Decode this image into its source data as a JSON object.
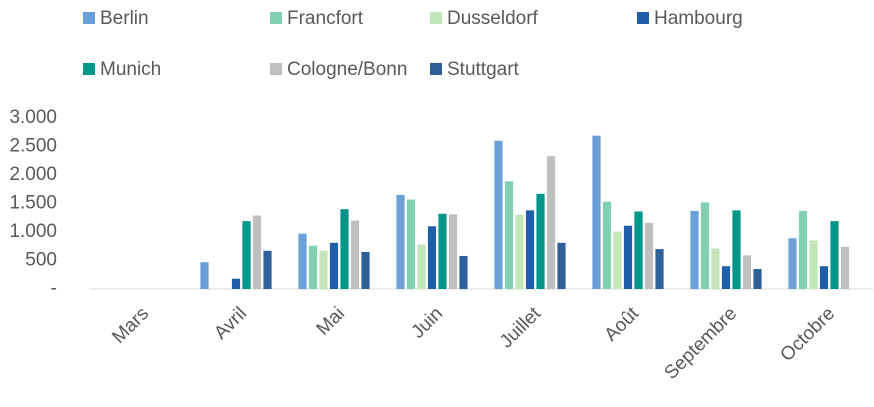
{
  "chart_data": {
    "type": "bar",
    "categories": [
      "Mars",
      "Avril",
      "Mai",
      "Juin",
      "Juillet",
      "Août",
      "Septembre",
      "Octobre"
    ],
    "series": [
      {
        "name": "Berlin",
        "color": "#6a9fd8",
        "values": [
          0,
          470,
          970,
          1650,
          2600,
          2690,
          1370,
          890
        ]
      },
      {
        "name": "Francfort",
        "color": "#82d0b2",
        "values": [
          0,
          0,
          760,
          1570,
          1890,
          1530,
          1520,
          1370
        ]
      },
      {
        "name": "Dusseldorf",
        "color": "#c3e6b9",
        "values": [
          0,
          0,
          670,
          780,
          1300,
          1010,
          710,
          850
        ]
      },
      {
        "name": "Hambourg",
        "color": "#1f5ea8",
        "values": [
          0,
          180,
          810,
          1100,
          1380,
          1110,
          400,
          400
        ]
      },
      {
        "name": "Munich",
        "color": "#00968a",
        "values": [
          0,
          1190,
          1400,
          1320,
          1670,
          1360,
          1380,
          1190
        ]
      },
      {
        "name": "Cologne/Bonn",
        "color": "#bfbfbf",
        "values": [
          0,
          1290,
          1200,
          1310,
          2330,
          1160,
          590,
          740
        ]
      },
      {
        "name": "Stuttgart",
        "color": "#2e6198",
        "values": [
          0,
          670,
          650,
          580,
          810,
          700,
          350,
          0
        ]
      }
    ],
    "ylim": [
      0,
      3000
    ],
    "yticks": [
      {
        "value": 0,
        "label": "-"
      },
      500,
      {
        "value": 1000,
        "label": "1.000"
      },
      {
        "value": 1500,
        "label": "1.500"
      },
      {
        "value": 2000,
        "label": "2.000"
      },
      {
        "value": 2500,
        "label": "2.500"
      },
      {
        "value": 3000,
        "label": "3.000"
      }
    ],
    "grid": false
  }
}
